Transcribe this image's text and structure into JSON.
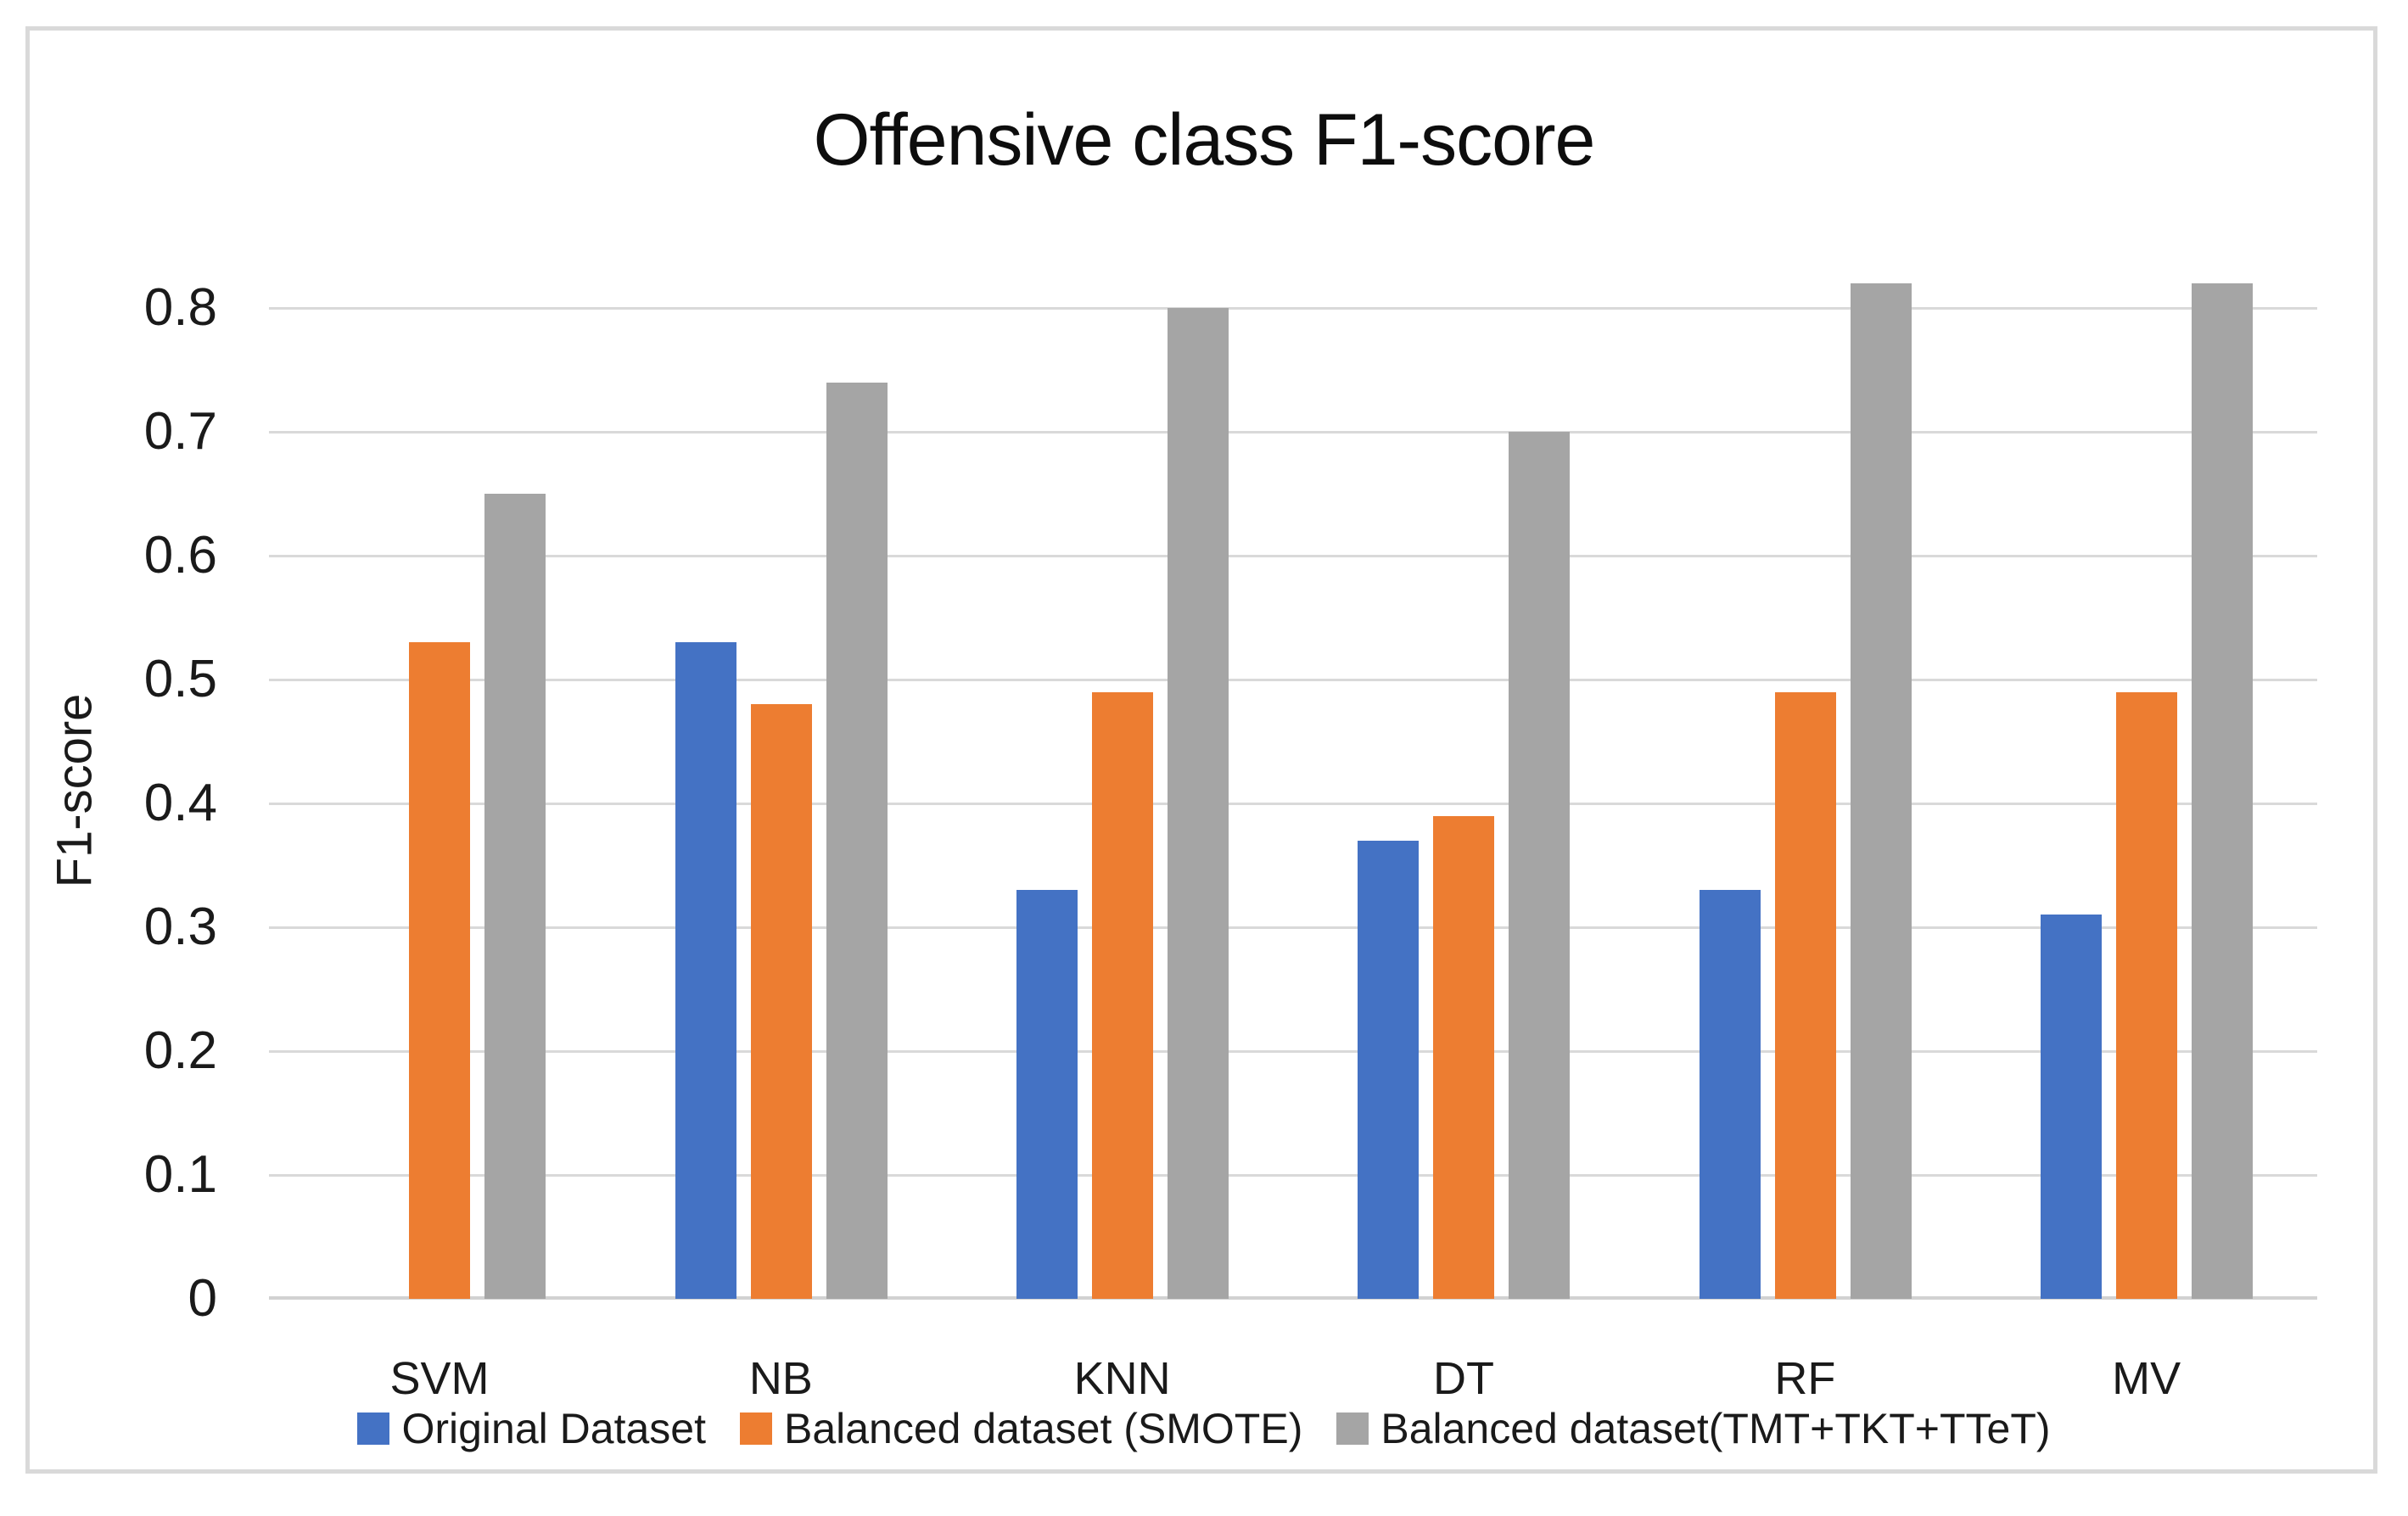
{
  "chart_data": {
    "type": "bar",
    "title": "Offensive class F1-score",
    "ylabel": "F1-score",
    "xlabel": "",
    "categories": [
      "SVM",
      "NB",
      "KNN",
      "DT",
      "RF",
      "MV"
    ],
    "series": [
      {
        "name": "Original Dataset",
        "color": "#4472C4",
        "values": [
          0,
          0.53,
          0.33,
          0.37,
          0.33,
          0.31
        ]
      },
      {
        "name": "Balanced dataset (SMOTE)",
        "color": "#ED7D31",
        "values": [
          0.53,
          0.48,
          0.49,
          0.39,
          0.49,
          0.49
        ]
      },
      {
        "name": "Balanced dataset(TMT+TKT+TTeT)",
        "color": "#A5A5A5",
        "values": [
          0.65,
          0.74,
          0.8,
          0.7,
          0.82,
          0.82
        ]
      }
    ],
    "ylim": [
      0,
      0.8
    ],
    "ytick_labels": [
      "0",
      "0.1",
      "0.2",
      "0.3",
      "0.4",
      "0.5",
      "0.6",
      "0.7",
      "0.8"
    ],
    "grid": true,
    "legend_position": "bottom",
    "colors": {
      "gridline": "#D9D9D9",
      "axis_line": "#D2D2D2",
      "frame_border": "#D9D9D9",
      "background": "#FFFFFF",
      "text": "#1A1A1A"
    }
  }
}
